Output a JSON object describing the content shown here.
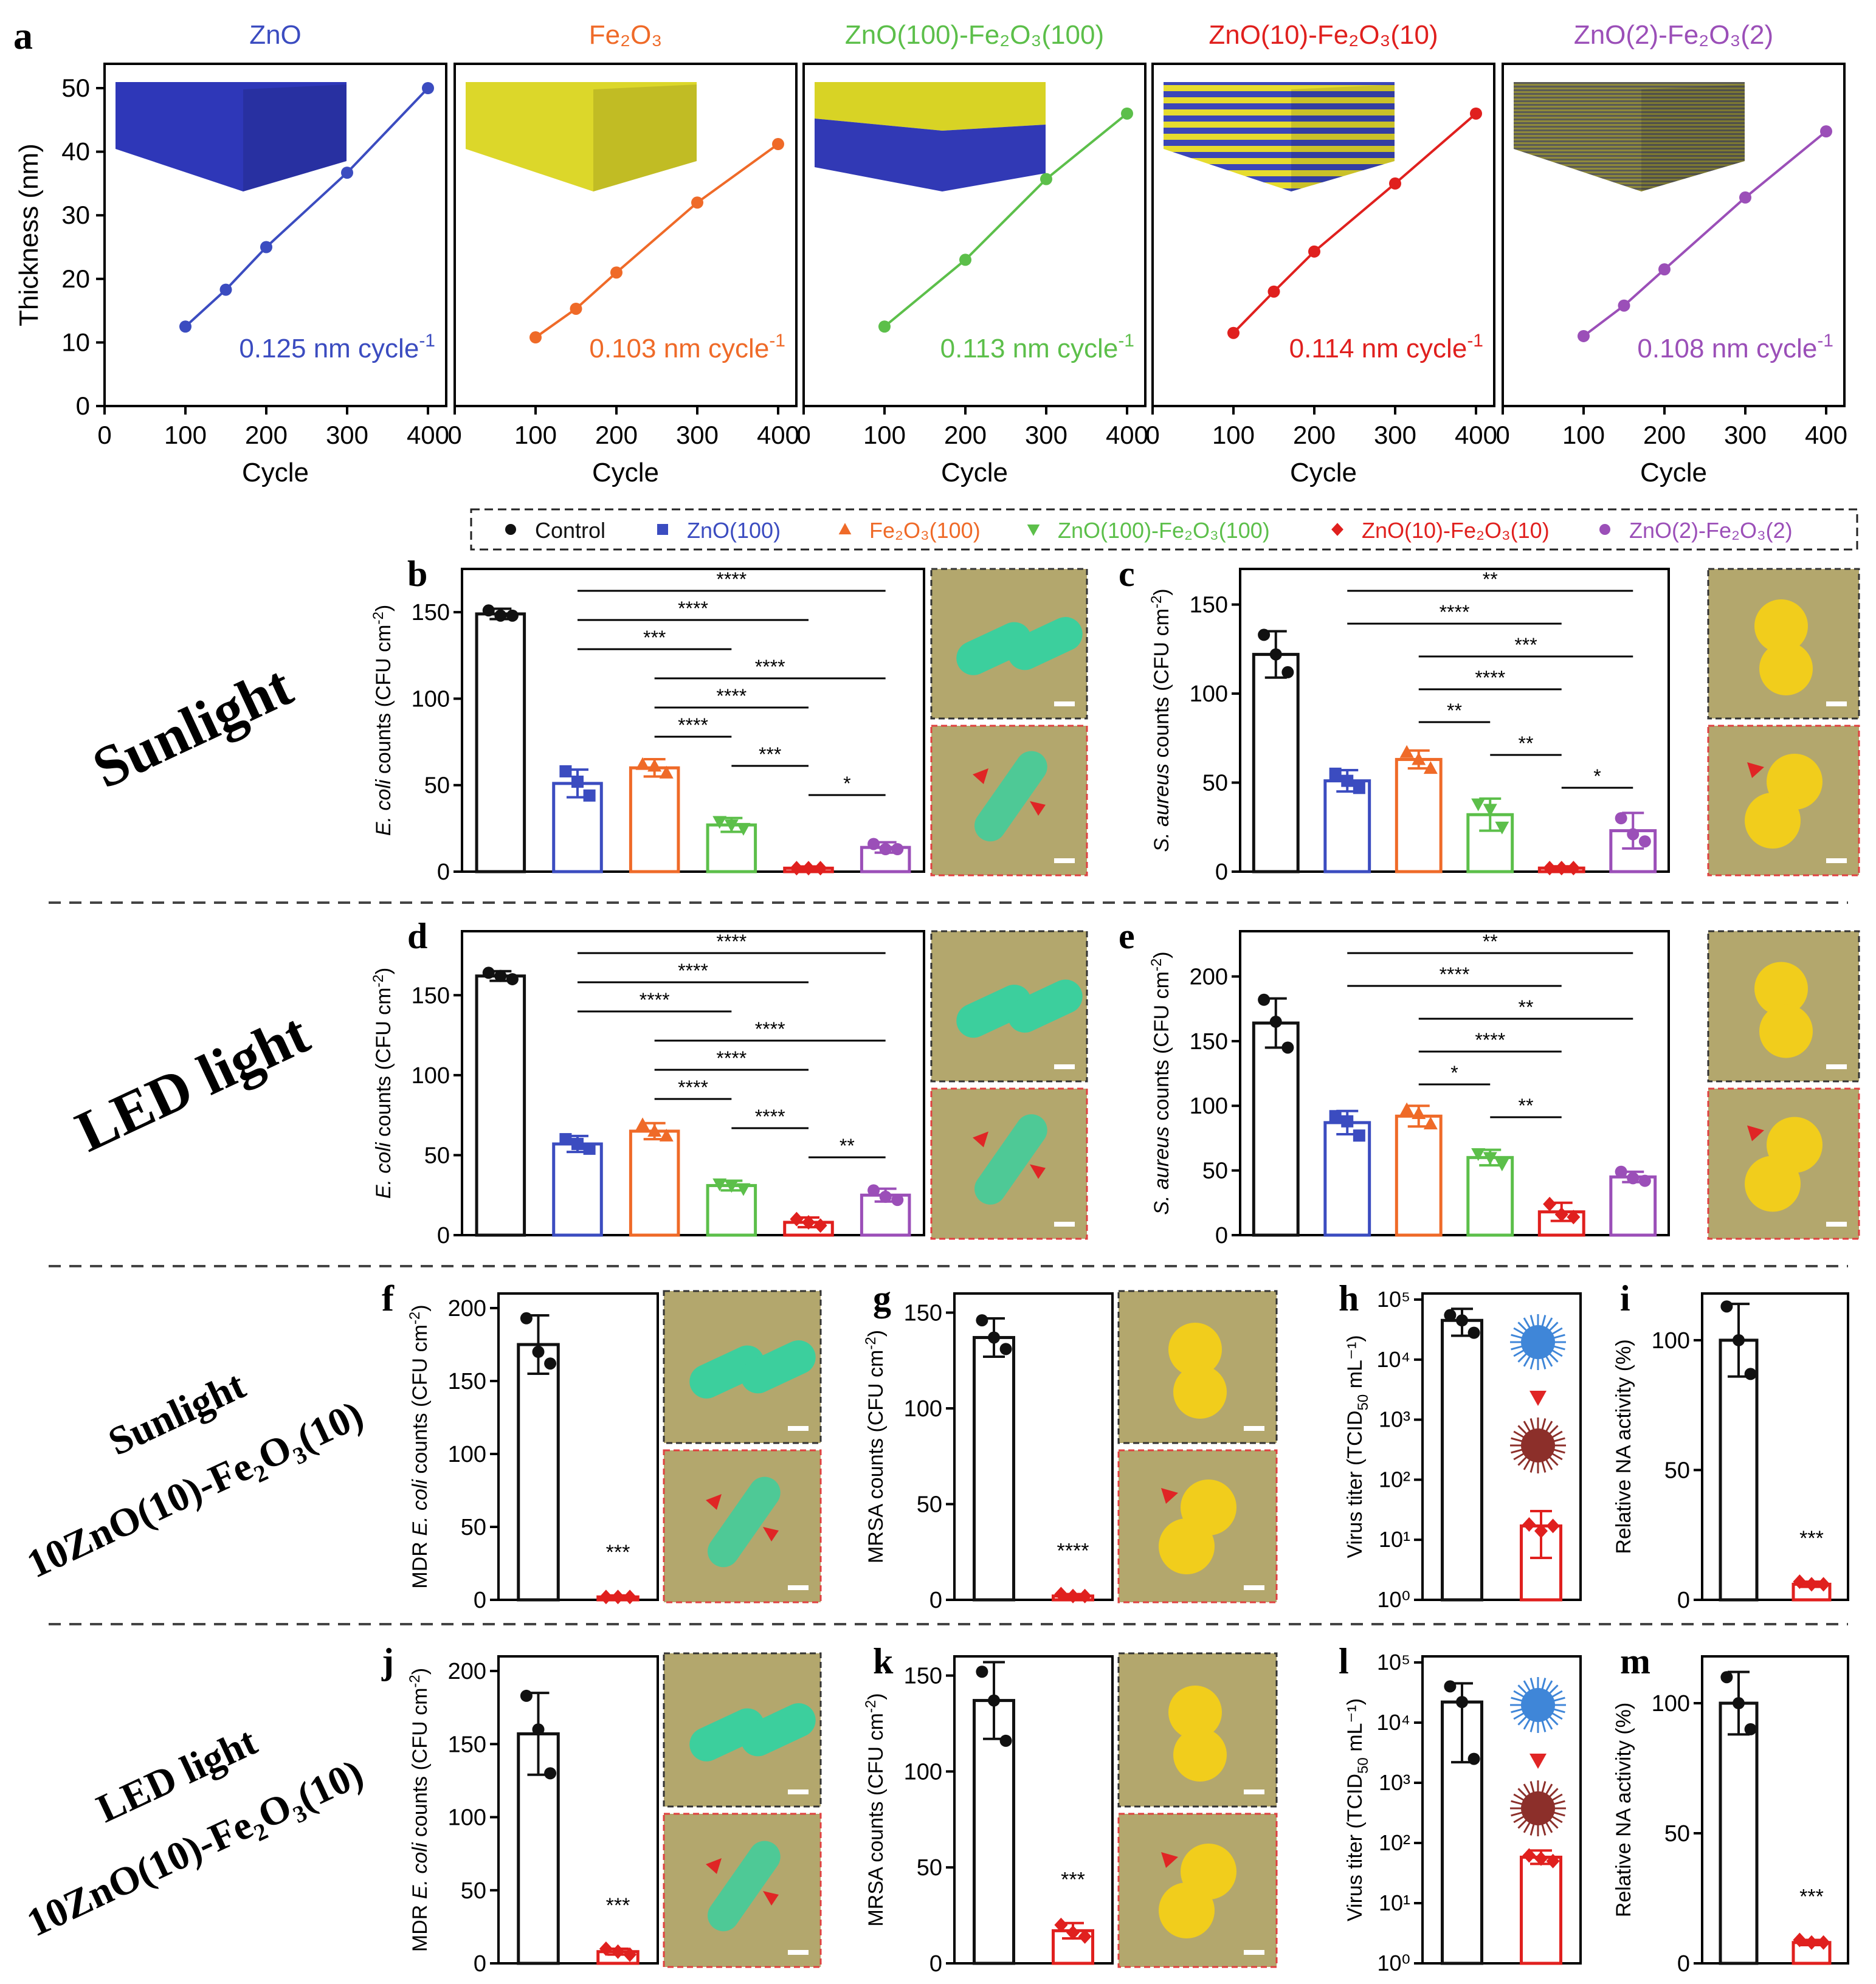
{
  "colors": {
    "control": "#111111",
    "zno": "#3b4cc0",
    "fe2o3": "#ef6a28",
    "znofe100": "#5cbf4a",
    "znofe10": "#e0201e",
    "znofe2": "#9b4fb8",
    "sem_bg": "#b3a76d",
    "ecoli": "#3ccf9d",
    "saureus": "#f1cd1c",
    "virus_active": "#3f86d8",
    "virus_dead": "#8c2f2a",
    "arrow": "#e02525"
  },
  "panel_letters": [
    "a",
    "b",
    "c",
    "d",
    "e",
    "f",
    "g",
    "h",
    "i",
    "j",
    "k",
    "l",
    "m"
  ],
  "row_labels": {
    "sunlight": "Sunlight",
    "led": "LED light",
    "sunlight_10": "Sunlight",
    "led_10": "LED light",
    "sample_10": "10ZnO(10)-Fe₂O₃(10)"
  },
  "legend": {
    "items": [
      {
        "label": "Control",
        "color": "#111111",
        "marker": "circle"
      },
      {
        "label": "ZnO(100)",
        "color": "#3b4cc0",
        "marker": "square"
      },
      {
        "label": "Fe₂O₃(100)",
        "color": "#ef6a28",
        "marker": "triangle-up"
      },
      {
        "label": "ZnO(100)-Fe₂O₃(100)",
        "color": "#5cbf4a",
        "marker": "triangle-down"
      },
      {
        "label": "ZnO(10)-Fe₂O₃(10)",
        "color": "#e0201e",
        "marker": "diamond"
      },
      {
        "label": "ZnO(2)-Fe₂O₃(2)",
        "color": "#9b4fb8",
        "marker": "circle"
      }
    ]
  },
  "chart_data": [
    {
      "id": "a",
      "type": "line",
      "xlabel": "Cycle",
      "ylabel": "Thickness (nm)",
      "xlim": [
        0,
        400
      ],
      "ylim": [
        0,
        50
      ],
      "xticks": [
        "0",
        "100",
        "200",
        "300",
        "400"
      ],
      "yticks": [
        "0",
        "10",
        "20",
        "30",
        "40",
        "50"
      ],
      "subplots": [
        {
          "title": "ZnO",
          "color": "#3b4cc0",
          "x": [
            100,
            150,
            200,
            300,
            400
          ],
          "y": [
            12.5,
            18.3,
            25.0,
            36.7,
            50.0
          ],
          "rate": "0.125 nm cycle⁻¹",
          "stack": "zno"
        },
        {
          "title": "Fe₂O₃",
          "color": "#ef6a28",
          "x": [
            100,
            150,
            200,
            300,
            400
          ],
          "y": [
            10.8,
            15.3,
            21.0,
            32.0,
            41.2
          ],
          "rate": "0.103 nm cycle⁻¹",
          "stack": "fe2o3"
        },
        {
          "title": "ZnO(100)-Fe₂O₃(100)",
          "color": "#5cbf4a",
          "x": [
            100,
            200,
            300,
            400
          ],
          "y": [
            12.5,
            23.0,
            35.7,
            46.0
          ],
          "rate": "0.113 nm cycle⁻¹",
          "stack": "bilayer"
        },
        {
          "title": "ZnO(10)-Fe₂O₃(10)",
          "color": "#e0201e",
          "x": [
            100,
            150,
            200,
            300,
            400
          ],
          "y": [
            11.5,
            18.0,
            24.3,
            35.0,
            46.0
          ],
          "rate": "0.114 nm cycle⁻¹",
          "stack": "multilayer10"
        },
        {
          "title": "ZnO(2)-Fe₂O₃(2)",
          "color": "#9b4fb8",
          "x": [
            100,
            150,
            200,
            300,
            400
          ],
          "y": [
            11.0,
            15.8,
            21.5,
            32.8,
            43.2
          ],
          "rate": "0.108 nm cycle⁻¹",
          "stack": "multilayer2"
        }
      ]
    },
    {
      "id": "b",
      "type": "bar",
      "ylabel_parts": [
        "",
        "E. coli",
        " counts (CFU cm",
        "-2",
        ")"
      ],
      "ylim": [
        0,
        175
      ],
      "yticks": [
        0,
        50,
        100,
        150
      ],
      "values": [
        149,
        51,
        60,
        27,
        2,
        14
      ],
      "errors": [
        3,
        8,
        5,
        4,
        1,
        3
      ],
      "points": [
        [
          151,
          148,
          148
        ],
        [
          58,
          52,
          44
        ],
        [
          62,
          61,
          57
        ],
        [
          29,
          27,
          25
        ],
        [
          2,
          2,
          2
        ],
        [
          16,
          13,
          13
        ]
      ],
      "sig": [
        {
          "from": 1,
          "to": 5,
          "label": "****"
        },
        {
          "from": 1,
          "to": 4,
          "label": "****"
        },
        {
          "from": 1,
          "to": 3,
          "label": "***"
        },
        {
          "from": 2,
          "to": 5,
          "label": "****"
        },
        {
          "from": 2,
          "to": 4,
          "label": "****"
        },
        {
          "from": 2,
          "to": 3,
          "label": "****"
        },
        {
          "from": 3,
          "to": 4,
          "label": "***"
        },
        {
          "from": 4,
          "to": 5,
          "label": "*"
        }
      ],
      "sem": "ecoli"
    },
    {
      "id": "c",
      "type": "bar",
      "ylabel_parts": [
        "",
        "S. aureus",
        "  counts (CFU cm",
        "-2",
        ")"
      ],
      "ylim": [
        0,
        170
      ],
      "yticks": [
        0,
        50,
        100,
        150
      ],
      "values": [
        122,
        51,
        63,
        32,
        2,
        23
      ],
      "errors": [
        13,
        6,
        5,
        9,
        1,
        10
      ],
      "points": [
        [
          133,
          122,
          112
        ],
        [
          55,
          51,
          47
        ],
        [
          67,
          63,
          58
        ],
        [
          38,
          35,
          25
        ],
        [
          2,
          2,
          2
        ],
        [
          30,
          21,
          17
        ]
      ],
      "sig": [
        {
          "from": 1,
          "to": 5,
          "label": "**"
        },
        {
          "from": 1,
          "to": 4,
          "label": "****"
        },
        {
          "from": 2,
          "to": 5,
          "label": "***"
        },
        {
          "from": 2,
          "to": 4,
          "label": "****"
        },
        {
          "from": 2,
          "to": 3,
          "label": "**"
        },
        {
          "from": 3,
          "to": 4,
          "label": "**"
        },
        {
          "from": 4,
          "to": 5,
          "label": "*"
        }
      ],
      "sem": "saureus"
    },
    {
      "id": "d",
      "type": "bar",
      "ylabel_parts": [
        "",
        "E. coli",
        " counts (CFU cm",
        "-2",
        ")"
      ],
      "ylim": [
        0,
        190
      ],
      "yticks": [
        0,
        50,
        100,
        150
      ],
      "values": [
        162,
        57,
        65,
        31,
        8,
        25
      ],
      "errors": [
        3,
        5,
        5,
        3,
        3,
        4
      ],
      "points": [
        [
          164,
          162,
          160
        ],
        [
          60,
          57,
          54
        ],
        [
          69,
          65,
          62
        ],
        [
          32,
          31,
          29
        ],
        [
          10,
          8,
          6
        ],
        [
          28,
          24,
          22
        ]
      ],
      "sig": [
        {
          "from": 1,
          "to": 5,
          "label": "****"
        },
        {
          "from": 1,
          "to": 4,
          "label": "****"
        },
        {
          "from": 1,
          "to": 3,
          "label": "****"
        },
        {
          "from": 2,
          "to": 5,
          "label": "****"
        },
        {
          "from": 2,
          "to": 4,
          "label": "****"
        },
        {
          "from": 2,
          "to": 3,
          "label": "****"
        },
        {
          "from": 3,
          "to": 4,
          "label": "****"
        },
        {
          "from": 4,
          "to": 5,
          "label": "**"
        }
      ],
      "sem": "ecoli"
    },
    {
      "id": "e",
      "type": "bar",
      "ylabel_parts": [
        "",
        "S. aureus",
        "  counts (CFU cm",
        "-2",
        ")"
      ],
      "ylim": [
        0,
        235
      ],
      "yticks": [
        0,
        50,
        100,
        150,
        200
      ],
      "values": [
        164,
        87,
        92,
        60,
        18,
        45
      ],
      "errors": [
        19,
        9,
        8,
        6,
        7,
        4
      ],
      "points": [
        [
          182,
          165,
          145
        ],
        [
          92,
          88,
          77
        ],
        [
          97,
          94,
          86
        ],
        [
          63,
          60,
          55
        ],
        [
          24,
          16,
          14
        ],
        [
          49,
          44,
          42
        ]
      ],
      "sig": [
        {
          "from": 1,
          "to": 5,
          "label": "**"
        },
        {
          "from": 1,
          "to": 4,
          "label": "****"
        },
        {
          "from": 2,
          "to": 5,
          "label": "**"
        },
        {
          "from": 2,
          "to": 4,
          "label": "****"
        },
        {
          "from": 2,
          "to": 3,
          "label": "*"
        },
        {
          "from": 3,
          "to": 4,
          "label": "**"
        }
      ],
      "sem": "saureus"
    },
    {
      "id": "f",
      "type": "bar",
      "ylabel_parts": [
        "MDR ",
        "E. coli",
        " counts (CFU cm",
        "-2",
        ")"
      ],
      "ylim": [
        0,
        210
      ],
      "yticks": [
        0,
        50,
        100,
        150,
        200
      ],
      "values": [
        175,
        2
      ],
      "errors": [
        20,
        1
      ],
      "points": [
        [
          193,
          170,
          162
        ],
        [
          2,
          2,
          2
        ]
      ],
      "stars": "***",
      "sem": "ecoli"
    },
    {
      "id": "g",
      "type": "bar",
      "ylabel_parts": [
        "MRSA counts (CFU cm",
        "",
        "",
        "-2",
        ")"
      ],
      "ylim": [
        0,
        160
      ],
      "yticks": [
        0,
        50,
        100,
        150
      ],
      "values": [
        137,
        2
      ],
      "errors": [
        10,
        1
      ],
      "points": [
        [
          146,
          137,
          131
        ],
        [
          3,
          2,
          2
        ]
      ],
      "stars": "****",
      "sem": "saureus"
    },
    {
      "id": "h",
      "type": "bar",
      "log": true,
      "ylabel_parts": [
        "Virus titer (TCID",
        "",
        "",
        "50",
        " mL⁻¹)"
      ],
      "ylim_log": [
        0,
        5
      ],
      "yticks": [
        "10⁰",
        "10¹",
        "10²",
        "10³",
        "10⁴",
        "10⁵"
      ],
      "values": [
        45000,
        17
      ],
      "errors_log": [
        [
          25000,
          70000
        ],
        [
          5,
          30
        ]
      ],
      "points": [
        [
          55000,
          45000,
          28000
        ],
        [
          18,
          14,
          17
        ]
      ],
      "sem": "virus"
    },
    {
      "id": "i",
      "type": "bar",
      "ylabel_parts": [
        "Relative NA activity (%)",
        "",
        "",
        "",
        ""
      ],
      "ylim": [
        0,
        118
      ],
      "yticks": [
        0,
        50,
        100
      ],
      "values": [
        100,
        6
      ],
      "errors": [
        14,
        1
      ],
      "points": [
        [
          113,
          100,
          87
        ],
        [
          7,
          6,
          6
        ]
      ],
      "stars": "***"
    },
    {
      "id": "j",
      "type": "bar",
      "ylabel_parts": [
        "MDR ",
        "E. coli",
        " counts (CFU cm",
        "-2",
        ")"
      ],
      "ylim": [
        0,
        210
      ],
      "yticks": [
        0,
        50,
        100,
        150,
        200
      ],
      "values": [
        157,
        8
      ],
      "errors": [
        28,
        2
      ],
      "points": [
        [
          183,
          160,
          130
        ],
        [
          10,
          8,
          6
        ]
      ],
      "stars": "***",
      "sem": "ecoli"
    },
    {
      "id": "k",
      "type": "bar",
      "ylabel_parts": [
        "MRSA counts (CFU cm",
        "",
        "",
        "-2",
        ")"
      ],
      "ylim": [
        0,
        160
      ],
      "yticks": [
        0,
        50,
        100,
        150
      ],
      "values": [
        137,
        17
      ],
      "errors": [
        20,
        4
      ],
      "points": [
        [
          152,
          137,
          116
        ],
        [
          20,
          16,
          14
        ]
      ],
      "stars": "***",
      "sem": "saureus"
    },
    {
      "id": "l",
      "type": "bar",
      "log": true,
      "ylabel_parts": [
        "Virus titer (TCID",
        "",
        "",
        "50",
        " mL⁻¹)"
      ],
      "ylim_log": [
        0,
        5
      ],
      "yticks": [
        "10⁰",
        "10¹",
        "10²",
        "10³",
        "10⁴",
        "10⁵"
      ],
      "values": [
        22000,
        58
      ],
      "errors_log": [
        [
          2200,
          45000
        ],
        [
          45,
          75
        ]
      ],
      "points": [
        [
          40000,
          22000,
          2500
        ],
        [
          62,
          55,
          50
        ]
      ],
      "sem": "virus"
    },
    {
      "id": "m",
      "type": "bar",
      "ylabel_parts": [
        "Relative NA activity (%)",
        "",
        "",
        "",
        ""
      ],
      "ylim": [
        0,
        118
      ],
      "yticks": [
        0,
        50,
        100
      ],
      "values": [
        100,
        8
      ],
      "errors": [
        12,
        1
      ],
      "points": [
        [
          110,
          100,
          90
        ],
        [
          9,
          8,
          8
        ]
      ],
      "stars": "***"
    }
  ]
}
